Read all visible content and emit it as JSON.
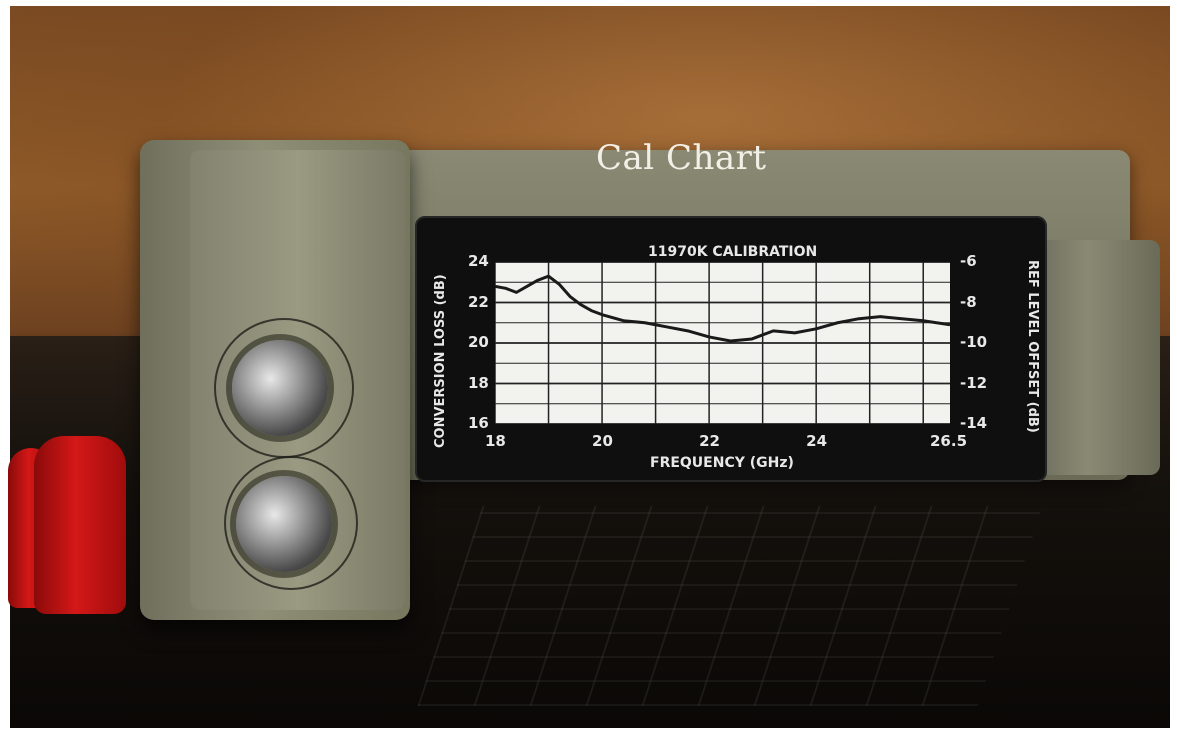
{
  "caption": "Cal Chart",
  "label": {
    "title": "11970K CALIBRATION",
    "y_left_title": "CONVERSION LOSS (dB)",
    "y_right_title": "REF LEVEL OFFSET (dB)",
    "x_title": "FREQUENCY (GHz)"
  },
  "chart_data": {
    "type": "line",
    "title": "11970K CALIBRATION",
    "xlabel": "FREQUENCY (GHz)",
    "ylabel": "CONVERSION LOSS (dB)",
    "ylabel_right": "REF LEVEL OFFSET (dB)",
    "xlim": [
      18,
      26.5
    ],
    "ylim": [
      16,
      24
    ],
    "ylim_right": [
      -14,
      -6
    ],
    "x_ticks": [
      "18",
      "20",
      "22",
      "24",
      "26.5"
    ],
    "y_ticks": [
      "16",
      "18",
      "20",
      "22",
      "24"
    ],
    "y_right_ticks": [
      "-14",
      "-12",
      "-10",
      "-8",
      "-6"
    ],
    "grid": true,
    "x": [
      18.0,
      18.2,
      18.4,
      18.6,
      18.8,
      19.0,
      19.2,
      19.4,
      19.6,
      19.8,
      20.0,
      20.4,
      20.8,
      21.2,
      21.6,
      22.0,
      22.4,
      22.8,
      23.2,
      23.6,
      24.0,
      24.4,
      24.8,
      25.2,
      25.6,
      26.0,
      26.5
    ],
    "series": [
      {
        "values": [
          22.8,
          22.7,
          22.5,
          22.8,
          23.1,
          23.3,
          22.9,
          22.3,
          21.9,
          21.6,
          21.4,
          21.1,
          21.0,
          20.8,
          20.6,
          20.3,
          20.1,
          20.2,
          20.6,
          20.5,
          20.7,
          21.0,
          21.2,
          21.3,
          21.2,
          21.1,
          20.9
        ]
      }
    ]
  },
  "objects": {
    "caps_color": "#c81414",
    "body_color": "#7d7d67"
  }
}
